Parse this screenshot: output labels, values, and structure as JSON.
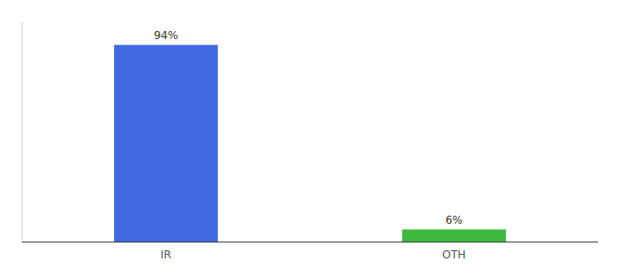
{
  "chart_data": {
    "type": "bar",
    "categories": [
      "IR",
      "OTH"
    ],
    "values": [
      94,
      6
    ],
    "value_labels": [
      "94%",
      "6%"
    ],
    "colors": [
      "#4169e1",
      "#3dba3d"
    ],
    "ylim": [
      0,
      105
    ],
    "data_labels": true,
    "tick_labels": "x",
    "grid": false
  }
}
